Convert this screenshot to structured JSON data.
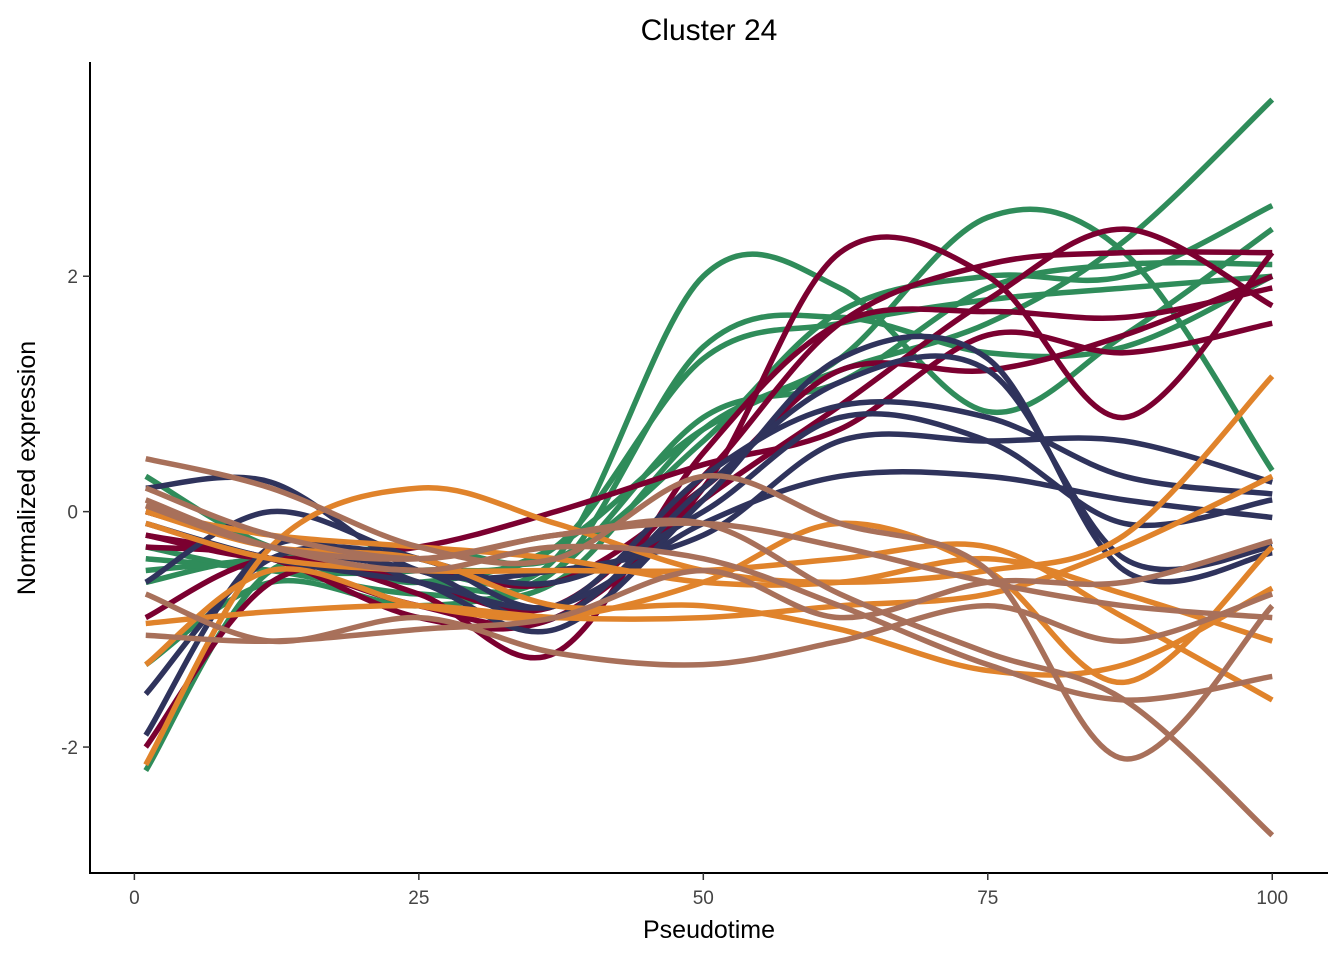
{
  "chart_data": {
    "type": "line",
    "title": "Cluster 24",
    "xlabel": "Pseudotime",
    "ylabel": "Normalized expression",
    "xlim": [
      -3.9,
      104.9
    ],
    "ylim": [
      -3.07,
      3.82
    ],
    "xticks": [
      0,
      25,
      50,
      75,
      100
    ],
    "yticks": [
      -2,
      0,
      2
    ],
    "grid": false,
    "legend": "none",
    "x": [
      1,
      12,
      25,
      37,
      50,
      62,
      75,
      87,
      100
    ],
    "series": [
      {
        "group": "green",
        "color": "#2f8c5a",
        "values": [
          -2.2,
          -0.5,
          -0.6,
          -0.3,
          0.7,
          1.2,
          1.6,
          2.3,
          3.5
        ]
      },
      {
        "group": "green",
        "color": "#2f8c5a",
        "values": [
          0.3,
          -0.3,
          -0.5,
          -0.4,
          2.0,
          1.9,
          0.85,
          1.5,
          2.4
        ]
      },
      {
        "group": "green",
        "color": "#2f8c5a",
        "values": [
          -0.4,
          -0.5,
          -0.7,
          -0.6,
          0.7,
          1.3,
          2.5,
          2.2,
          0.35
        ]
      },
      {
        "group": "green",
        "color": "#2f8c5a",
        "values": [
          -0.6,
          -0.4,
          -0.6,
          -0.5,
          1.4,
          1.65,
          1.35,
          1.4,
          2.0
        ]
      },
      {
        "group": "green",
        "color": "#2f8c5a",
        "values": [
          -0.5,
          -0.4,
          -0.3,
          -0.4,
          0.6,
          1.7,
          2.0,
          2.0,
          2.6
        ]
      },
      {
        "group": "green",
        "color": "#2f8c5a",
        "values": [
          -1.3,
          -0.6,
          -0.8,
          -0.5,
          0.8,
          1.1,
          1.9,
          2.1,
          2.1
        ]
      },
      {
        "group": "green",
        "color": "#2f8c5a",
        "values": [
          -0.3,
          -0.5,
          -0.5,
          -0.3,
          1.3,
          1.6,
          1.8,
          1.9,
          2.0
        ]
      },
      {
        "group": "red",
        "color": "#7b0030",
        "values": [
          -0.2,
          -0.4,
          -0.8,
          -0.9,
          0.2,
          2.2,
          2.0,
          0.8,
          2.2
        ]
      },
      {
        "group": "red",
        "color": "#7b0030",
        "values": [
          -0.3,
          -0.4,
          -0.9,
          -0.9,
          0.1,
          0.9,
          1.8,
          2.4,
          1.75
        ]
      },
      {
        "group": "red",
        "color": "#7b0030",
        "values": [
          -0.9,
          -0.4,
          -0.7,
          -1.2,
          0.5,
          1.6,
          1.7,
          1.65,
          1.9
        ]
      },
      {
        "group": "red",
        "color": "#7b0030",
        "values": [
          -2.0,
          -0.6,
          -0.5,
          -0.6,
          0.2,
          1.2,
          1.2,
          1.5,
          2.0
        ]
      },
      {
        "group": "red",
        "color": "#7b0030",
        "values": [
          -0.2,
          -0.4,
          -0.3,
          0.0,
          0.4,
          0.7,
          1.5,
          1.35,
          1.6
        ]
      },
      {
        "group": "red",
        "color": "#7b0030",
        "values": [
          0.0,
          -0.3,
          -0.6,
          -0.8,
          0.3,
          1.6,
          2.1,
          2.2,
          2.2
        ]
      },
      {
        "group": "navy",
        "color": "#2f335c",
        "values": [
          -1.9,
          -0.3,
          -0.6,
          -1.0,
          0.1,
          1.3,
          1.3,
          -0.5,
          -0.35
        ]
      },
      {
        "group": "navy",
        "color": "#2f335c",
        "values": [
          -1.55,
          -0.4,
          -0.4,
          -0.8,
          0.3,
          0.9,
          0.8,
          0.3,
          0.15
        ]
      },
      {
        "group": "navy",
        "color": "#2f335c",
        "values": [
          0.2,
          0.25,
          -0.5,
          -0.5,
          -0.2,
          0.6,
          0.6,
          0.6,
          0.25
        ]
      },
      {
        "group": "navy",
        "color": "#2f335c",
        "values": [
          -0.1,
          -0.4,
          -0.6,
          -0.8,
          -0.1,
          0.3,
          0.3,
          0.1,
          -0.05
        ]
      },
      {
        "group": "navy",
        "color": "#2f335c",
        "values": [
          0.0,
          -0.3,
          -0.5,
          -0.9,
          0.2,
          1.1,
          1.2,
          -0.4,
          -0.3
        ]
      },
      {
        "group": "navy",
        "color": "#2f335c",
        "values": [
          -0.6,
          0.0,
          -0.4,
          -0.6,
          0.0,
          0.8,
          0.6,
          -0.1,
          0.1
        ]
      },
      {
        "group": "orange",
        "color": "#e0832b",
        "values": [
          -2.15,
          -0.3,
          0.2,
          -0.1,
          -0.5,
          -0.6,
          -0.5,
          -0.2,
          1.15
        ]
      },
      {
        "group": "orange",
        "color": "#e0832b",
        "values": [
          -1.3,
          -0.5,
          -0.8,
          -0.9,
          -0.6,
          -0.1,
          -0.5,
          -1.45,
          -0.3
        ]
      },
      {
        "group": "orange",
        "color": "#e0832b",
        "values": [
          -0.95,
          -0.85,
          -0.8,
          -0.9,
          -0.9,
          -0.8,
          -0.7,
          -0.3,
          0.3
        ]
      },
      {
        "group": "orange",
        "color": "#e0832b",
        "values": [
          0.0,
          -0.2,
          -0.3,
          -0.4,
          -0.6,
          -0.6,
          -0.4,
          -0.7,
          -1.1
        ]
      },
      {
        "group": "orange",
        "color": "#e0832b",
        "values": [
          0.0,
          -0.3,
          -0.4,
          -0.8,
          -0.8,
          -1.0,
          -1.35,
          -1.3,
          -0.65
        ]
      },
      {
        "group": "orange",
        "color": "#e0832b",
        "values": [
          -0.1,
          -0.4,
          -0.5,
          -0.5,
          -0.5,
          -0.4,
          -0.3,
          -0.9,
          -1.6
        ]
      },
      {
        "group": "brown",
        "color": "#a8705a",
        "values": [
          0.45,
          0.2,
          -0.3,
          -0.4,
          0.3,
          -0.1,
          -0.5,
          -2.1,
          -0.8
        ]
      },
      {
        "group": "brown",
        "color": "#a8705a",
        "values": [
          -0.7,
          -1.1,
          -0.9,
          -1.2,
          -1.3,
          -1.1,
          -0.8,
          -1.1,
          -0.7
        ]
      },
      {
        "group": "brown",
        "color": "#a8705a",
        "values": [
          -1.05,
          -1.1,
          -1.0,
          -0.9,
          -0.5,
          -0.9,
          -0.6,
          -0.6,
          -0.25
        ]
      },
      {
        "group": "brown",
        "color": "#a8705a",
        "values": [
          0.1,
          -0.3,
          -0.5,
          -0.3,
          -0.4,
          -0.8,
          -1.3,
          -1.6,
          -1.4
        ]
      },
      {
        "group": "brown",
        "color": "#a8705a",
        "values": [
          0.2,
          -0.2,
          -0.4,
          -0.2,
          -0.1,
          -0.7,
          -1.2,
          -1.6,
          -2.75
        ]
      },
      {
        "group": "brown",
        "color": "#a8705a",
        "values": [
          0.05,
          -0.3,
          -0.4,
          -0.2,
          -0.1,
          -0.3,
          -0.6,
          -0.8,
          -0.9
        ]
      }
    ]
  }
}
